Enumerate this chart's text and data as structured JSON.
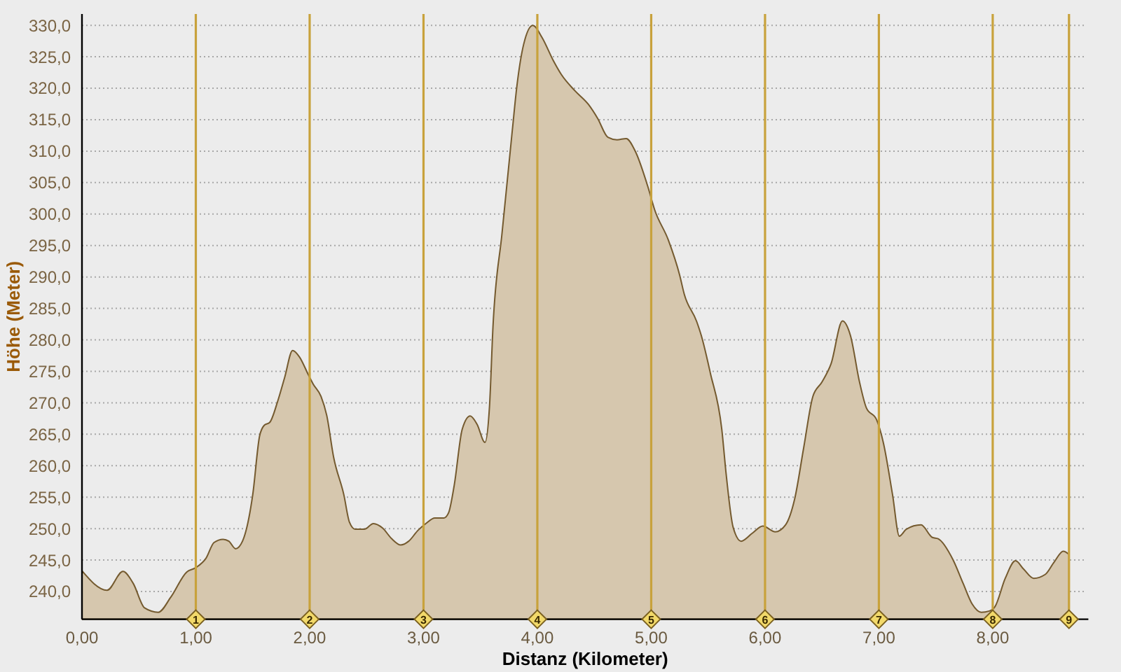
{
  "chart_data": {
    "type": "area",
    "xlabel": "Distanz (Kilometer)",
    "ylabel": "Höhe (Meter)",
    "x": [
      0,
      0.22,
      0.36,
      0.45,
      0.55,
      0.67,
      0.78,
      0.92,
      1.0,
      1.09,
      1.16,
      1.24,
      1.29,
      1.35,
      1.41,
      1.5,
      1.56,
      1.6,
      1.65,
      1.72,
      1.78,
      1.85,
      1.91,
      1.99,
      2.03,
      2.1,
      2.15,
      2.21,
      2.3,
      2.35,
      2.4,
      2.48,
      2.56,
      2.64,
      2.72,
      2.8,
      2.87,
      2.95,
      3.02,
      3.1,
      3.18,
      3.22,
      3.27,
      3.34,
      3.41,
      3.47,
      3.54,
      3.58,
      3.61,
      3.69,
      3.78,
      3.82,
      3.88,
      3.96,
      4.04,
      4.14,
      4.21,
      4.33,
      4.45,
      4.53,
      4.62,
      4.7,
      4.78,
      4.86,
      4.97,
      5.03,
      5.15,
      5.25,
      5.29,
      5.4,
      5.44,
      5.52,
      5.62,
      5.66,
      5.72,
      5.79,
      5.89,
      5.98,
      6.09,
      6.18,
      6.26,
      6.34,
      6.42,
      6.5,
      6.58,
      6.68,
      6.75,
      6.83,
      6.89,
      6.98,
      7.04,
      7.12,
      7.18,
      7.24,
      7.37,
      7.47,
      7.52,
      7.65,
      7.74,
      7.82,
      7.9,
      7.97,
      8.02,
      8.11,
      8.2,
      8.27,
      8.36,
      8.46,
      8.54,
      8.62,
      8.67
    ],
    "values": [
      243.3,
      240.2,
      243.2,
      241.3,
      237.4,
      236.7,
      239.1,
      243.1,
      243.8,
      245.3,
      247.8,
      248.3,
      248.0,
      246.8,
      248.0,
      255.4,
      264.7,
      266.4,
      266.9,
      270.3,
      274.0,
      278.3,
      277.3,
      274.4,
      273.0,
      271.0,
      268.0,
      261.4,
      255.4,
      251.0,
      249.9,
      249.9,
      250.8,
      250.1,
      248.4,
      247.4,
      248.0,
      249.7,
      250.8,
      251.7,
      251.7,
      252.5,
      256.9,
      265.8,
      267.9,
      266.6,
      263.7,
      269.5,
      282.0,
      297.0,
      313.3,
      320.3,
      327.0,
      330.0,
      328.1,
      324.4,
      322.2,
      319.6,
      317.4,
      315.2,
      312.2,
      311.8,
      312.0,
      310.0,
      304.4,
      300.7,
      295.9,
      290.3,
      287.3,
      282.9,
      280.7,
      274.7,
      265.8,
      258.4,
      250.2,
      248.0,
      249.3,
      250.4,
      249.5,
      250.6,
      254.7,
      262.9,
      271.0,
      273.3,
      276.2,
      283.0,
      280.7,
      273.3,
      269.2,
      267.3,
      263.6,
      255.4,
      248.8,
      249.9,
      250.6,
      248.6,
      248.4,
      245.1,
      241.3,
      238.0,
      236.7,
      236.9,
      237.6,
      242.1,
      244.9,
      243.6,
      242.1,
      242.7,
      244.7,
      246.4,
      245.9
    ],
    "color": "#d6c7ae",
    "xlim": [
      0,
      8.84
    ],
    "ylim": [
      235.6,
      331.8
    ],
    "xticks": [
      {
        "value": 0,
        "label": "0,00"
      },
      {
        "value": 1,
        "label": "1,00"
      },
      {
        "value": 2,
        "label": "2,00"
      },
      {
        "value": 3,
        "label": "3,00"
      },
      {
        "value": 4,
        "label": "4,00"
      },
      {
        "value": 5,
        "label": "5,00"
      },
      {
        "value": 6,
        "label": "6,00"
      },
      {
        "value": 7,
        "label": "7,00"
      },
      {
        "value": 8,
        "label": "8,00"
      }
    ],
    "yticks": [
      {
        "value": 240,
        "label": "240,0"
      },
      {
        "value": 245,
        "label": "245,0"
      },
      {
        "value": 250,
        "label": "250,0"
      },
      {
        "value": 255,
        "label": "255,0"
      },
      {
        "value": 260,
        "label": "260,0"
      },
      {
        "value": 265,
        "label": "265,0"
      },
      {
        "value": 270,
        "label": "270,0"
      },
      {
        "value": 275,
        "label": "275,0"
      },
      {
        "value": 280,
        "label": "280,0"
      },
      {
        "value": 285,
        "label": "285,0"
      },
      {
        "value": 290,
        "label": "290,0"
      },
      {
        "value": 295,
        "label": "295,0"
      },
      {
        "value": 300,
        "label": "300,0"
      },
      {
        "value": 305,
        "label": "305,0"
      },
      {
        "value": 310,
        "label": "310,0"
      },
      {
        "value": 315,
        "label": "315,0"
      },
      {
        "value": 320,
        "label": "320,0"
      },
      {
        "value": 325,
        "label": "325,0"
      },
      {
        "value": 330,
        "label": "330,0"
      }
    ],
    "grid": "y",
    "ref_lines": [
      {
        "axis": "x",
        "value": 1,
        "label": "1",
        "color": "#c8a23c"
      },
      {
        "axis": "x",
        "value": 2,
        "label": "2",
        "color": "#c8a23c"
      },
      {
        "axis": "x",
        "value": 3,
        "label": "3",
        "color": "#c8a23c"
      },
      {
        "axis": "x",
        "value": 4,
        "label": "4",
        "color": "#c8a23c"
      },
      {
        "axis": "x",
        "value": 5,
        "label": "5",
        "color": "#c8a23c"
      },
      {
        "axis": "x",
        "value": 6,
        "label": "6",
        "color": "#c8a23c"
      },
      {
        "axis": "x",
        "value": 7,
        "label": "7",
        "color": "#c8a23c"
      },
      {
        "axis": "x",
        "value": 8,
        "label": "8",
        "color": "#c8a23c"
      },
      {
        "axis": "x",
        "value": 8.67,
        "label": "9",
        "color": "#c8a23c"
      }
    ]
  }
}
